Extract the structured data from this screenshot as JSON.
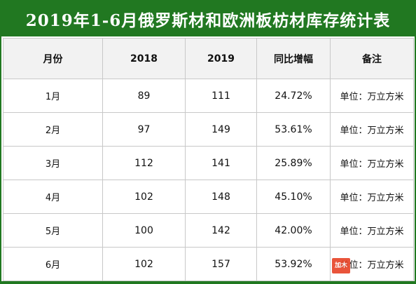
{
  "colors": {
    "title_bg": "#217821",
    "header_bg": "#f2f2f2",
    "grid": "#c8c8c8",
    "watermark_badge": "#e8462a"
  },
  "chart_data": {
    "type": "table",
    "title": "2019年1-6月俄罗斯材和欧洲板枋材库存统计表",
    "columns": [
      "月份",
      "2018",
      "2019",
      "同比增幅",
      "备注"
    ],
    "rows": [
      [
        "1月",
        89,
        111,
        "24.72%",
        "单位：万立方米"
      ],
      [
        "2月",
        97,
        149,
        "53.61%",
        "单位：万立方米"
      ],
      [
        "3月",
        112,
        141,
        "25.89%",
        "单位：万立方米"
      ],
      [
        "4月",
        102,
        148,
        "45.10%",
        "单位：万立方米"
      ],
      [
        "5月",
        100,
        142,
        "42.00%",
        "单位：万立方米"
      ],
      [
        "6月",
        102,
        157,
        "53.92%",
        "单位：万立方米"
      ]
    ]
  },
  "watermark": {
    "badge_text": "加木"
  }
}
